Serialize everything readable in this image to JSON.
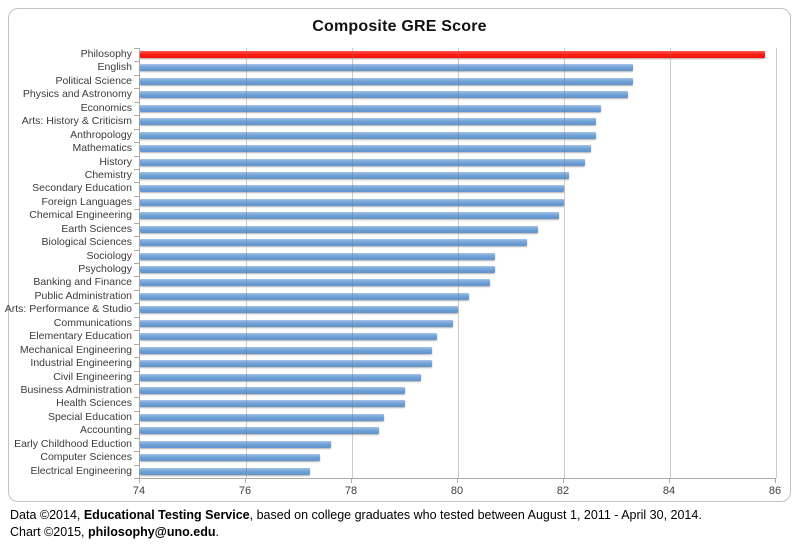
{
  "chart_data": {
    "type": "bar",
    "orientation": "horizontal",
    "title": "Composite GRE Score",
    "xlabel": "",
    "ylabel": "",
    "xlim": [
      74,
      86
    ],
    "xticks": [
      74,
      76,
      78,
      80,
      82,
      84,
      86
    ],
    "grid": "vertical-major",
    "legend": false,
    "bar_color": "#6f9fd4",
    "highlight_category": "Philosophy",
    "highlight_color": "#f91308",
    "categories": [
      "Philosophy",
      "English",
      "Political Science",
      "Physics and Astronomy",
      "Economics",
      "Arts: History & Criticism",
      "Anthropology",
      "Mathematics",
      "History",
      "Chemistry",
      "Secondary Education",
      "Foreign Languages",
      "Chemical Engineering",
      "Earth Sciences",
      "Biological Sciences",
      "Sociology",
      "Psychology",
      "Banking and Finance",
      "Public Administration",
      "Arts: Performance & Studio",
      "Communications",
      "Elementary Education",
      "Mechanical Engineering",
      "Industrial Engineering",
      "Civil Engineering",
      "Business Administration",
      "Health Sciences",
      "Special Education",
      "Accounting",
      "Early Childhood Eduction",
      "Computer Sciences",
      "Electrical Engineering"
    ],
    "values": [
      85.8,
      83.3,
      83.3,
      83.2,
      82.7,
      82.6,
      82.6,
      82.5,
      82.4,
      82.1,
      82.0,
      82.0,
      81.9,
      81.5,
      81.3,
      80.7,
      80.7,
      80.6,
      80.2,
      80.0,
      79.9,
      79.6,
      79.5,
      79.5,
      79.3,
      79.0,
      79.0,
      78.6,
      78.5,
      77.6,
      77.4,
      77.2
    ]
  },
  "footer": {
    "line1": [
      {
        "text": "Data ©2014, ",
        "bold": false
      },
      {
        "text": "Educational Testing Service",
        "bold": true
      },
      {
        "text": ", based on college graduates who tested between August 1, 2011 - April 30, 2014.",
        "bold": false
      }
    ],
    "line2": [
      {
        "text": "Chart ©2015, ",
        "bold": false
      },
      {
        "text": "philosophy@uno.edu",
        "bold": true
      },
      {
        "text": ".",
        "bold": false
      }
    ]
  }
}
